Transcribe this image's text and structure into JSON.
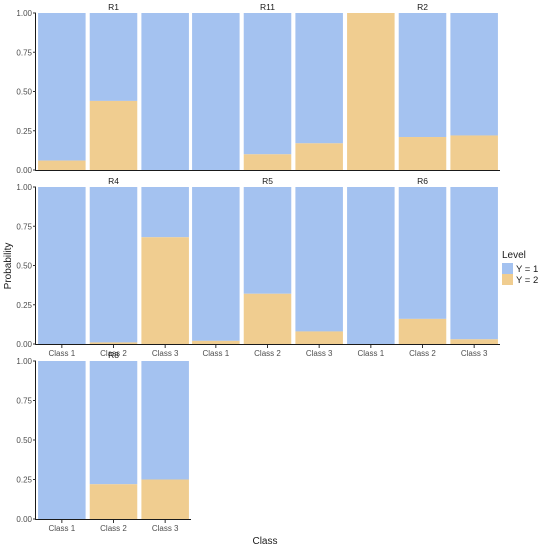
{
  "chart_data": {
    "type": "bar",
    "stacked": true,
    "xlabel": "Class",
    "ylabel": "Probability",
    "ylim": [
      0,
      1
    ],
    "yticks": [
      "0.00",
      "0.25",
      "0.50",
      "0.75",
      "1.00"
    ],
    "categories": [
      "Class 1",
      "Class 2",
      "Class 3"
    ],
    "legend": {
      "title": "Level",
      "placement": "right",
      "entries": [
        {
          "label": "Y = 1",
          "color": "#a4c2f0"
        },
        {
          "label": "Y = 2",
          "color": "#f0cd90"
        }
      ]
    },
    "panels": [
      {
        "name": "R1",
        "y2": [
          0.06,
          0.44,
          0.0
        ]
      },
      {
        "name": "R11",
        "y2": [
          0.0,
          0.1,
          0.17
        ]
      },
      {
        "name": "R2",
        "y2": [
          1.0,
          0.21,
          0.22
        ]
      },
      {
        "name": "R4",
        "y2": [
          0.0,
          0.01,
          0.68
        ]
      },
      {
        "name": "R5",
        "y2": [
          0.02,
          0.32,
          0.08
        ]
      },
      {
        "name": "R6",
        "y2": [
          0.0,
          0.16,
          0.03
        ]
      },
      {
        "name": "R8",
        "y2": [
          0.0,
          0.22,
          0.25
        ]
      }
    ]
  }
}
